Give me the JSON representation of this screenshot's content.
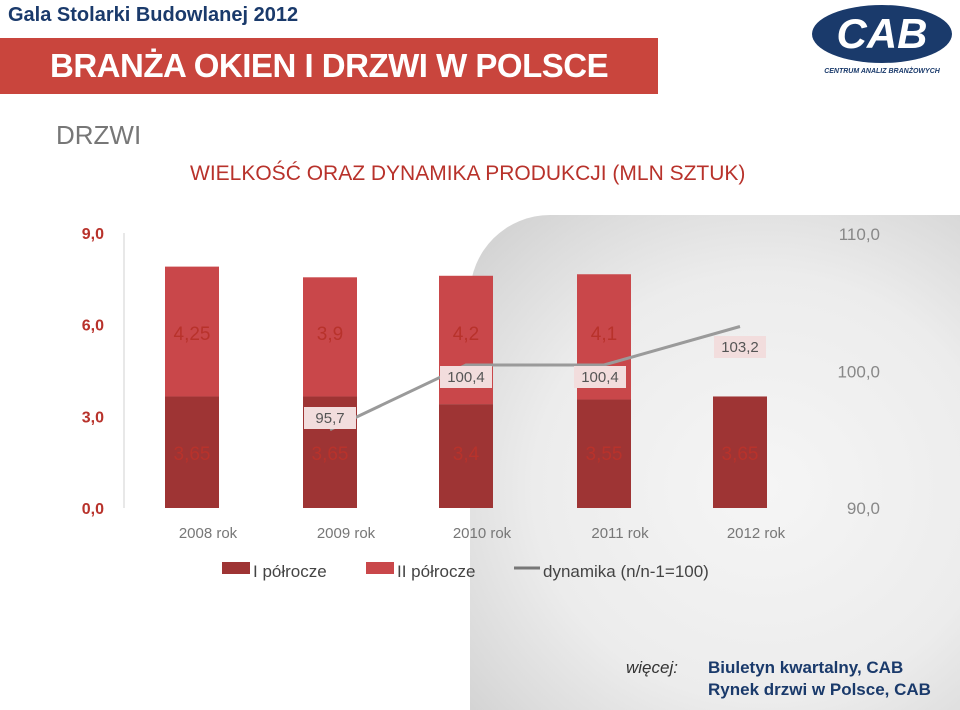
{
  "header": {
    "event": "Gala Stolarki Budowlanej 2012",
    "banner": "BRANŻA OKIEN I DRZWI W POLSCE",
    "section": "DRZWI"
  },
  "logo": {
    "mark": "CAB",
    "caption": "CENTRUM ANALIZ BRANŻOWYCH"
  },
  "colors": {
    "banner": "#c9453d",
    "first_half": "#9e3434",
    "second_half": "#c9474a",
    "line": "#9a9a9a"
  },
  "chart_data": {
    "type": "bar",
    "stacked": true,
    "title": "WIELKOŚĆ ORAZ DYNAMIKA PRODUKCJI (MLN SZTUK)",
    "categories": [
      "2008 rok",
      "2009 rok",
      "2010 rok",
      "2011 rok",
      "2012 rok"
    ],
    "series": [
      {
        "name": "I półrocze",
        "values": [
          3.65,
          3.65,
          3.4,
          3.55,
          3.65
        ],
        "labels": [
          "3,65",
          "3,65",
          "3,4",
          "3,55",
          "3,65"
        ]
      },
      {
        "name": "II półrocze",
        "values": [
          4.25,
          3.9,
          4.2,
          4.1,
          null
        ],
        "labels": [
          "4,25",
          "3,9",
          "4,2",
          "4,1",
          ""
        ]
      },
      {
        "name": "dynamika (n/n-1=100)",
        "type": "line",
        "axis": "right",
        "values": [
          null,
          95.7,
          100.4,
          100.4,
          103.2
        ],
        "labels": [
          "",
          "95,7",
          "100,4",
          "100,4",
          "103,2"
        ]
      }
    ],
    "y_left": {
      "ylim": [
        0,
        9
      ],
      "ticks": [
        "0,0",
        "3,0",
        "6,0",
        "9,0"
      ]
    },
    "y_right": {
      "ylim": [
        90,
        110
      ],
      "ticks": [
        "90,0",
        "100,0",
        "110,0"
      ]
    },
    "legend": [
      "I półrocze",
      "II półrocze",
      "dynamika (n/n-1=100)"
    ],
    "legend_position": "bottom"
  },
  "footer": {
    "more_label": "więcej:",
    "source1": "Biuletyn kwartalny, CAB",
    "source2": "Rynek drzwi w Polsce, CAB"
  }
}
